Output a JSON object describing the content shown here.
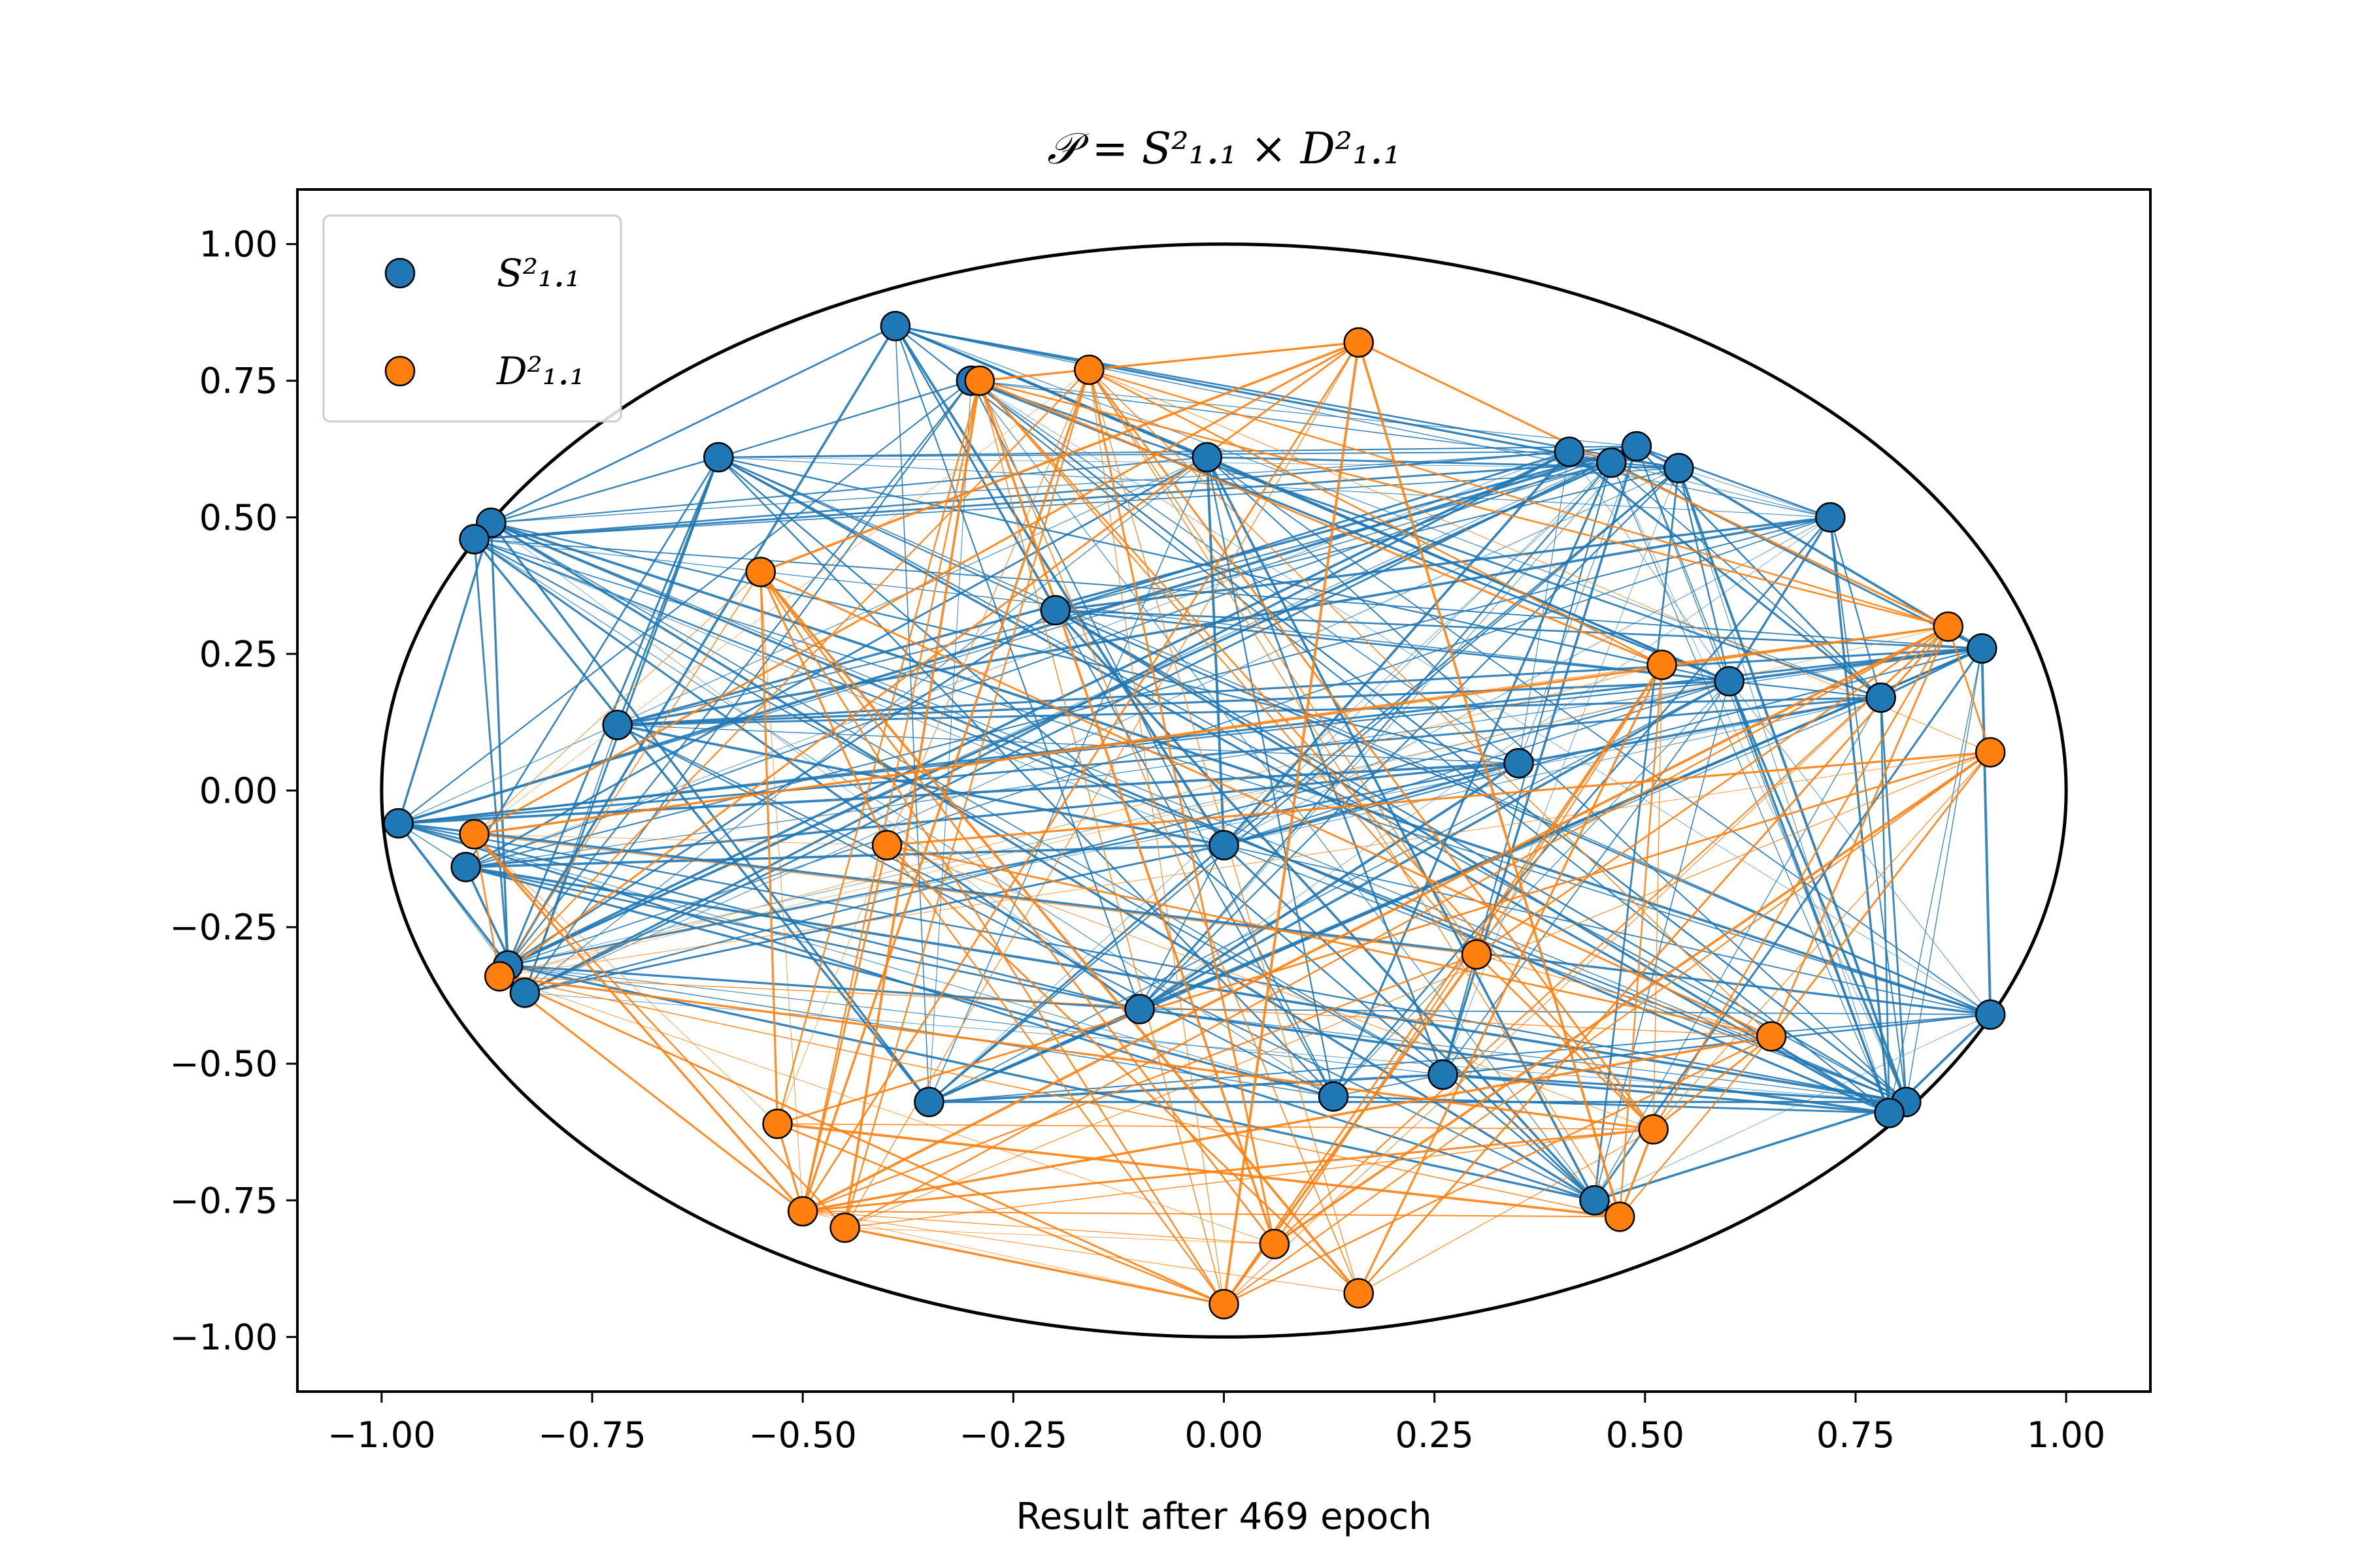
{
  "chart_data": {
    "type": "scatter",
    "title": "𝒫 = S²₁.₁ × D²₁.₁",
    "xlabel": "Result after 469 epoch",
    "ylabel": "",
    "xlim": [
      -1.1,
      1.1
    ],
    "ylim": [
      -1.1,
      1.1
    ],
    "xticks": [
      -1.0,
      -0.75,
      -0.5,
      -0.25,
      0.0,
      0.25,
      0.5,
      0.75,
      1.0
    ],
    "yticks": [
      -1.0,
      -0.75,
      -0.5,
      -0.25,
      0.0,
      0.25,
      0.5,
      0.75,
      1.0
    ],
    "xtick_labels": [
      "−1.00",
      "−0.75",
      "−0.50",
      "−0.25",
      "0.00",
      "0.25",
      "0.50",
      "0.75",
      "1.00"
    ],
    "ytick_labels": [
      "−1.00",
      "−0.75",
      "−0.50",
      "−0.25",
      "0.00",
      "0.25",
      "0.50",
      "0.75",
      "1.00"
    ],
    "grid": false,
    "legend_position": "top-left",
    "boundary": "unit-circle",
    "series": [
      {
        "name": "S²₁.₁",
        "color": "#1f77b4",
        "x": [
          -0.39,
          -0.6,
          -0.87,
          -0.89,
          -0.98,
          -0.9,
          -0.85,
          -0.83,
          0.41,
          0.49,
          0.46,
          0.54,
          0.72,
          0.9,
          0.91,
          0.81,
          0.79,
          0.44,
          -0.35,
          -0.02,
          0.26,
          0.13,
          -0.3,
          0.78,
          -0.2,
          0.0,
          0.6,
          -0.1,
          0.35,
          -0.72
        ],
        "y": [
          0.85,
          0.61,
          0.49,
          0.46,
          -0.06,
          -0.14,
          -0.32,
          -0.37,
          0.62,
          0.63,
          0.6,
          0.59,
          0.5,
          0.26,
          -0.41,
          -0.57,
          -0.59,
          -0.75,
          -0.57,
          0.61,
          -0.52,
          -0.56,
          0.75,
          0.17,
          0.33,
          -0.1,
          0.2,
          -0.4,
          0.05,
          0.12
        ]
      },
      {
        "name": "D²₁.₁",
        "color": "#ff7f0e",
        "x": [
          0.16,
          -0.16,
          -0.29,
          -0.89,
          -0.86,
          0.86,
          0.91,
          -0.53,
          -0.5,
          -0.45,
          0.0,
          0.06,
          0.16,
          0.47,
          0.51,
          -0.4,
          0.52,
          -0.55,
          0.3,
          0.65
        ],
        "y": [
          0.82,
          0.77,
          0.75,
          -0.08,
          -0.34,
          0.3,
          0.07,
          -0.61,
          -0.77,
          -0.8,
          -0.94,
          -0.83,
          -0.92,
          -0.78,
          -0.62,
          -0.1,
          0.23,
          0.4,
          -0.3,
          -0.45
        ]
      }
    ],
    "connections": "dense edges between points of each series (blue = S²₁.₁, orange = D²₁.₁)"
  }
}
